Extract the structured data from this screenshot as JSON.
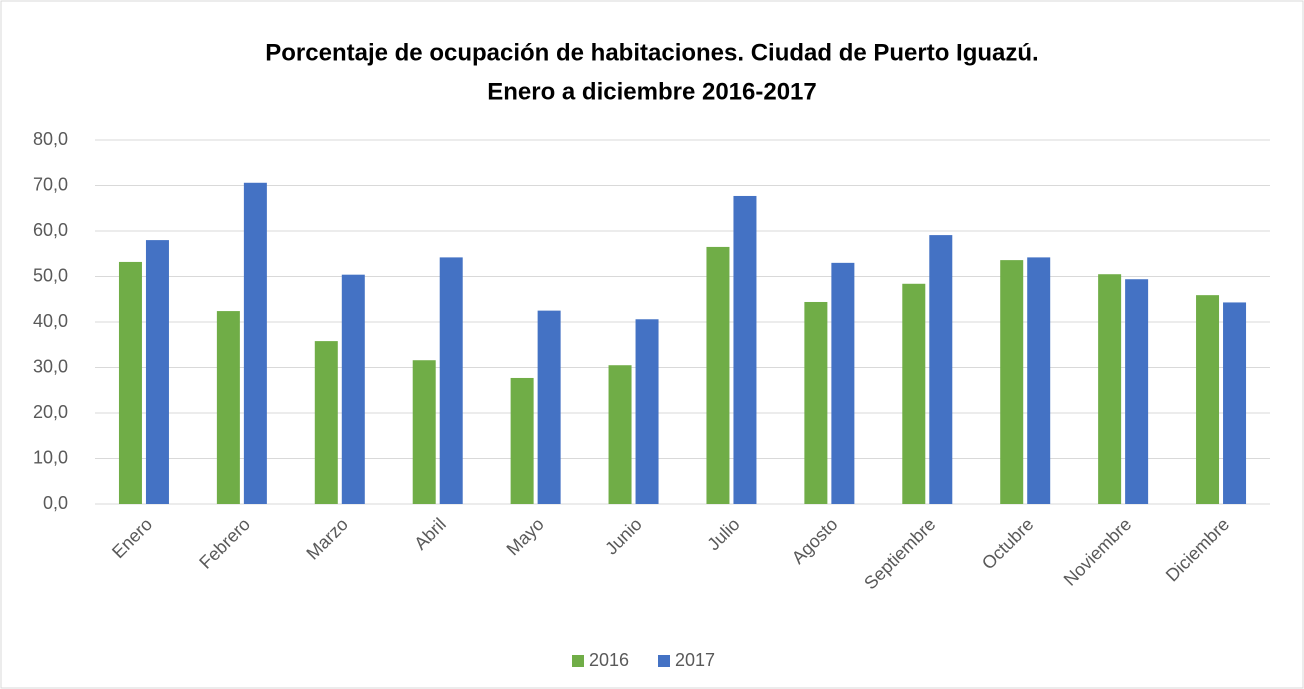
{
  "chart_data": {
    "type": "bar",
    "title": "Porcentaje de ocupación de habitaciones. Ciudad de Puerto Iguazú.",
    "subtitle": "Enero a diciembre 2016-2017",
    "categories": [
      "Enero",
      "Febrero",
      "Marzo",
      "Abril",
      "Mayo",
      "Junio",
      "Julio",
      "Agosto",
      "Septiembre",
      "Octubre",
      "Noviembre",
      "Diciembre"
    ],
    "series": [
      {
        "name": "2016",
        "color": "#70ad47",
        "values": [
          53.2,
          42.4,
          35.8,
          31.6,
          27.7,
          30.5,
          56.5,
          44.4,
          48.4,
          53.6,
          50.5,
          45.9
        ]
      },
      {
        "name": "2017",
        "color": "#4472c4",
        "values": [
          58.0,
          70.6,
          50.4,
          54.2,
          42.5,
          40.6,
          67.7,
          53.0,
          59.1,
          54.2,
          49.4,
          44.3
        ]
      }
    ],
    "ylim": [
      0,
      80
    ],
    "yticks": [
      {
        "value": 0,
        "label": "0,0"
      },
      {
        "value": 10,
        "label": "10,0"
      },
      {
        "value": 20,
        "label": "20,0"
      },
      {
        "value": 30,
        "label": "30,0"
      },
      {
        "value": 40,
        "label": "40,0"
      },
      {
        "value": 50,
        "label": "50,0"
      },
      {
        "value": 60,
        "label": "60,0"
      },
      {
        "value": 70,
        "label": "70,0"
      },
      {
        "value": 80,
        "label": "80,0"
      }
    ],
    "grid": true,
    "legend": "bottom"
  }
}
